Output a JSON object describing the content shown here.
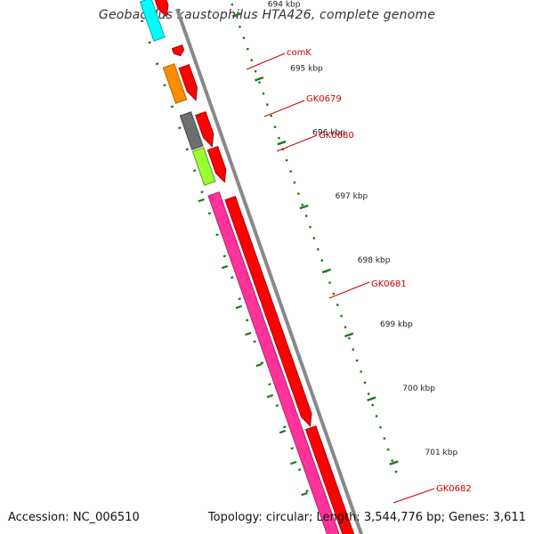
{
  "title": "Geobacillus kaustophilus HTA426, complete genome",
  "footer": {
    "accession": "Accession: NC_006510",
    "stats": "Topology: circular; Length: 3,544,776 bp; Genes: 3,611"
  },
  "ticks": [
    {
      "label": "694 kbp",
      "kbp": 694
    },
    {
      "label": "695 kbp",
      "kbp": 695
    },
    {
      "label": "696 kbp",
      "kbp": 696
    },
    {
      "label": "697 kbp",
      "kbp": 697
    },
    {
      "label": "698 kbp",
      "kbp": 698
    },
    {
      "label": "699 kbp",
      "kbp": 699
    },
    {
      "label": "700 kbp",
      "kbp": 700
    },
    {
      "label": "701 kbp",
      "kbp": 701
    }
  ],
  "gene_labels": [
    {
      "label": "comK",
      "position_kbp": 694.45
    },
    {
      "label": "GK0679",
      "position_kbp": 695.22
    },
    {
      "label": "GK0680",
      "position_kbp": 695.6
    },
    {
      "label": "GK0681",
      "position_kbp": 698.2
    },
    {
      "label": "GK0682",
      "position_kbp": 701.3
    }
  ],
  "colors": {
    "backbone": "#888888",
    "cds": "#ff0000",
    "rrna": "#00ffff",
    "comk": "#ff8c00",
    "gk0679": "#6e6e6e",
    "gk0680": "#99ff33",
    "gk0681": "#ff3399",
    "tick": "#1a7a1a",
    "label_red": "#cc0000"
  }
}
